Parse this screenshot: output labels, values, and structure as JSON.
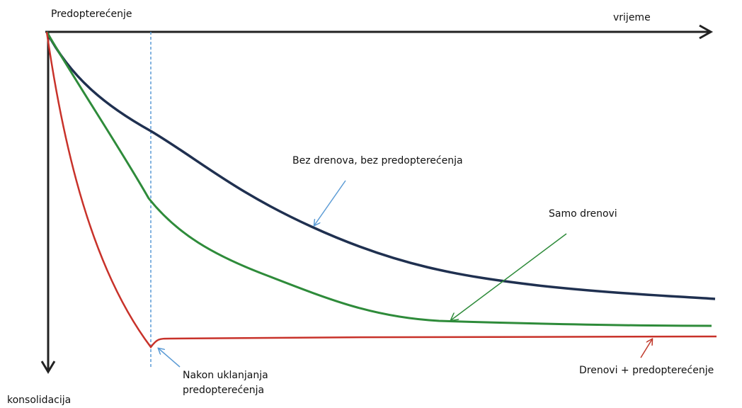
{
  "axes": {
    "x_label": "vrijeme",
    "y_label": "konsolidacija",
    "start_label": "Predopterećenje"
  },
  "curves": [
    {
      "label": "Bez drenova, bez predopterećenja"
    },
    {
      "label": "Samo drenovi"
    },
    {
      "label": "Drenovi + predopterećenje"
    }
  ],
  "annotation": {
    "lines": [
      "Nakon uklanjanja",
      "predopterećenja"
    ]
  }
}
